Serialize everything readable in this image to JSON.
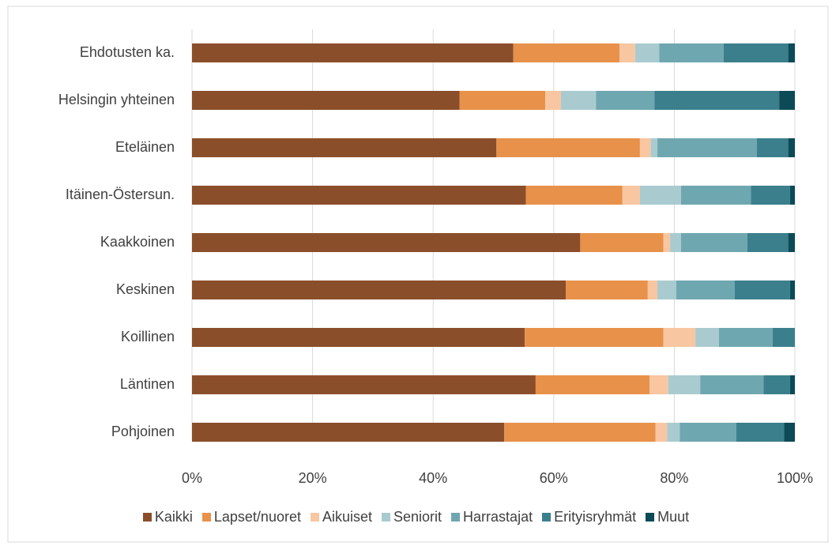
{
  "chart_data": {
    "type": "stacked_barh",
    "categories": [
      "Ehdotusten ka.",
      "Helsingin yhteinen",
      "Eteläinen",
      "Itäinen-Östersun.",
      "Kaakkoinen",
      "Keskinen",
      "Koillinen",
      "Läntinen",
      "Pohjoinen"
    ],
    "series": [
      {
        "name": "Kaikki",
        "color": "#8b4e2b",
        "values": [
          53.3,
          44.4,
          50.5,
          55.4,
          64.4,
          62.0,
          55.2,
          57.0,
          51.8
        ]
      },
      {
        "name": "Lapset/nuoret",
        "color": "#e8914a",
        "values": [
          17.6,
          14.2,
          23.8,
          16.0,
          13.8,
          13.6,
          23.0,
          18.9,
          25.1
        ]
      },
      {
        "name": "Aikuiset",
        "color": "#f8c6a0",
        "values": [
          2.6,
          2.6,
          1.8,
          2.9,
          1.1,
          1.6,
          5.3,
          3.1,
          1.9
        ]
      },
      {
        "name": "Seniorit",
        "color": "#a9cbd0",
        "values": [
          4.0,
          5.8,
          1.1,
          6.8,
          1.8,
          3.1,
          3.9,
          5.3,
          2.1
        ]
      },
      {
        "name": "Harrastajat",
        "color": "#6fa7b0",
        "values": [
          10.7,
          9.7,
          16.5,
          11.6,
          11.0,
          9.7,
          8.9,
          10.5,
          9.4
        ]
      },
      {
        "name": "Erityisryhmät",
        "color": "#3b7f8c",
        "values": [
          10.7,
          20.7,
          5.2,
          6.5,
          6.8,
          9.2,
          3.7,
          4.4,
          7.9
        ]
      },
      {
        "name": "Muut",
        "color": "#0d4a57",
        "values": [
          1.1,
          2.6,
          1.1,
          0.8,
          1.1,
          0.8,
          0,
          0.8,
          1.8
        ]
      }
    ],
    "xlim": [
      0,
      100
    ],
    "xticks": [
      {
        "value": 0,
        "label": "0%"
      },
      {
        "value": 20,
        "label": "20%"
      },
      {
        "value": 40,
        "label": "40%"
      },
      {
        "value": 60,
        "label": "60%"
      },
      {
        "value": 80,
        "label": "80%"
      },
      {
        "value": 100,
        "label": "100%"
      }
    ],
    "grid": true,
    "legend": "bottom"
  }
}
